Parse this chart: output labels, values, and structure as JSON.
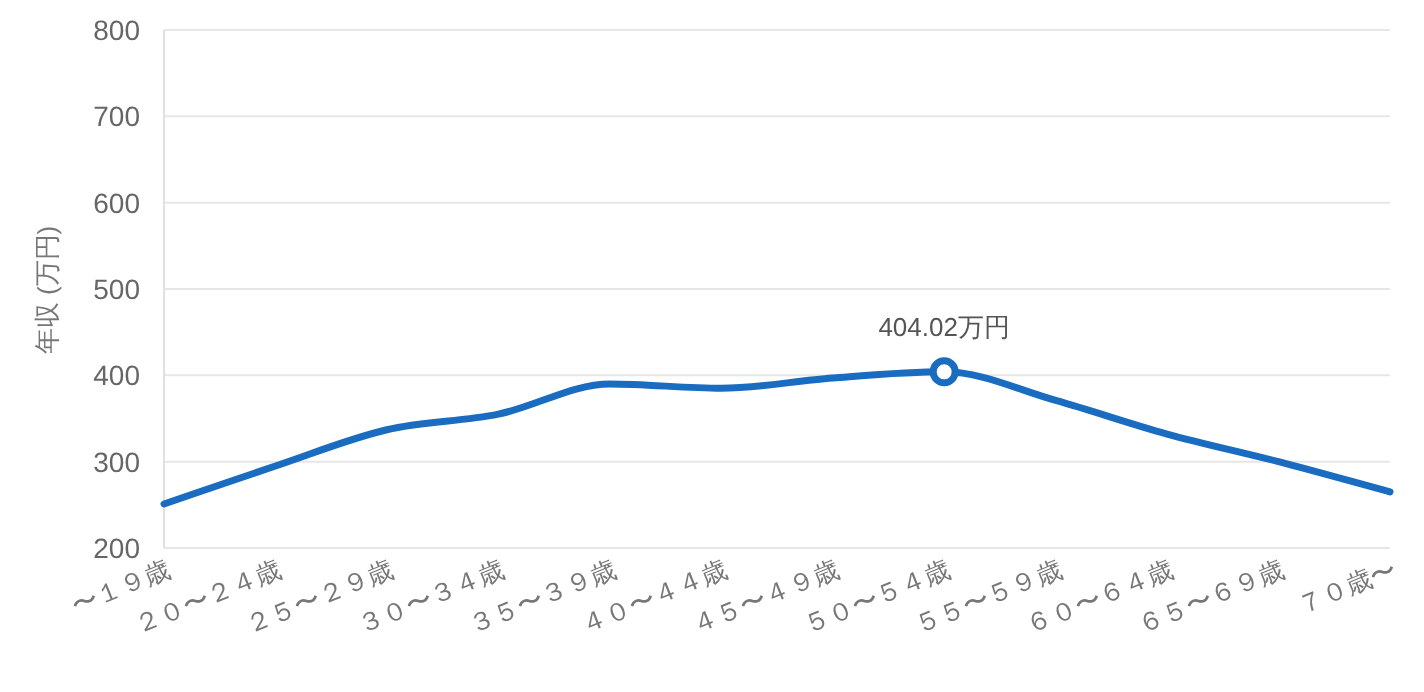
{
  "chart_data": {
    "type": "line",
    "ylabel": "年収 (万円)",
    "categories": [
      "〜１９歳",
      "２０〜２４歳",
      "２５〜２９歳",
      "３０〜３４歳",
      "３５〜３９歳",
      "４０〜４４歳",
      "４５〜４９歳",
      "５０〜５４歳",
      "５５〜５９歳",
      "６０〜６４歳",
      "６５〜６９歳",
      "７０歳〜"
    ],
    "series": [
      {
        "color": "#1a6cc0",
        "values": [
          251,
          295,
          337,
          355,
          390,
          385,
          397,
          404.02,
          371,
          332,
          300,
          265
        ],
        "value_labels": [
          null,
          null,
          null,
          null,
          null,
          null,
          null,
          "404.02万円",
          null,
          null,
          null,
          null
        ]
      }
    ],
    "ylim": [
      200,
      800
    ],
    "yticks": [
      200,
      300,
      400,
      500,
      600,
      700,
      800
    ],
    "grid": "y",
    "marker": "none",
    "line_style": "solid"
  }
}
